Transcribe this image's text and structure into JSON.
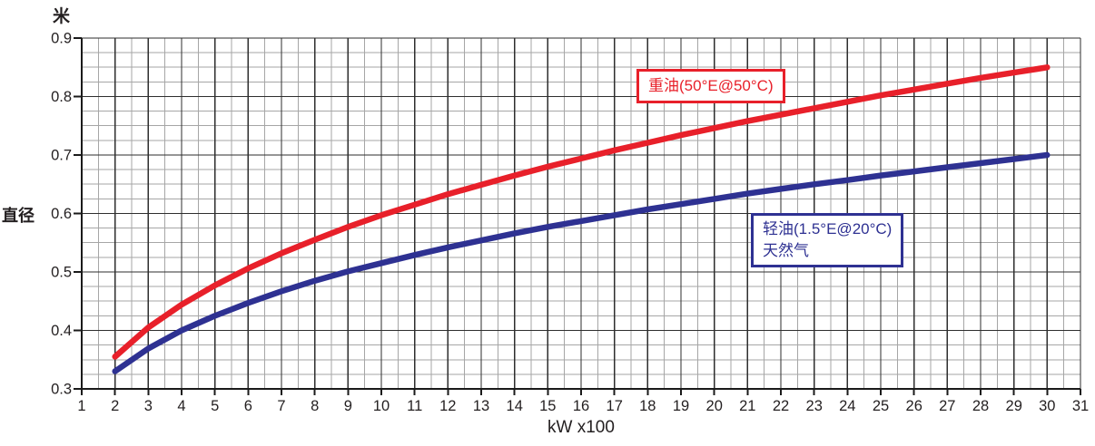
{
  "axis_labels": {
    "unit_top": "米",
    "y_name": "直径",
    "x_name": "kW x100"
  },
  "annotations": {
    "heavy_oil": {
      "text": "重油(50°E@50°C)",
      "color": "#e8202a"
    },
    "light_oil": {
      "line1": "轻油(1.5°E@20°C)",
      "line2": "天然气",
      "color": "#2e3192"
    }
  },
  "colors": {
    "grid_major": "#2e2e2e",
    "grid_minor": "#a6a6a6",
    "axis": "#1a1a1a",
    "tick_text": "#231f20",
    "background": "#ffffff",
    "heavy_oil_curve": "#e8202a",
    "light_oil_curve": "#2e3192"
  },
  "chart_data": {
    "type": "line",
    "title": "",
    "xlabel": "kW x100",
    "ylabel": "直径 (米)",
    "xlim": [
      1,
      31
    ],
    "ylim": [
      0.3,
      0.9
    ],
    "x_major_step": 1,
    "x_minor_step": 0.5,
    "y_major_step": 0.1,
    "y_minor_step": 0.025,
    "grid": "major+minor",
    "legend_position": "inline-annotation-boxes",
    "x_tick_labels": [
      1,
      2,
      3,
      4,
      5,
      6,
      7,
      8,
      9,
      10,
      11,
      12,
      13,
      14,
      15,
      16,
      17,
      18,
      19,
      20,
      21,
      22,
      23,
      24,
      25,
      26,
      27,
      28,
      29,
      30,
      31
    ],
    "y_tick_labels": [
      "0.3",
      "0.4",
      "0.5",
      "0.6",
      "0.7",
      "0.8",
      "0.9"
    ],
    "series": [
      {
        "name": "重油(50°E@50°C)",
        "color": "#e8202a",
        "x": [
          2,
          3,
          4,
          5,
          6,
          7,
          8,
          9,
          10,
          11,
          12,
          13,
          14,
          15,
          16,
          17,
          18,
          19,
          20,
          21,
          22,
          23,
          24,
          25,
          26,
          27,
          28,
          29,
          30
        ],
        "values": [
          0.355,
          0.405,
          0.444,
          0.477,
          0.506,
          0.532,
          0.555,
          0.577,
          0.597,
          0.615,
          0.633,
          0.649,
          0.665,
          0.68,
          0.694,
          0.708,
          0.721,
          0.734,
          0.746,
          0.758,
          0.769,
          0.78,
          0.791,
          0.802,
          0.812,
          0.822,
          0.832,
          0.841,
          0.85
        ]
      },
      {
        "name": "轻油(1.5°E@20°C) / 天然气",
        "color": "#2e3192",
        "x": [
          2,
          3,
          4,
          5,
          6,
          7,
          8,
          9,
          10,
          11,
          12,
          13,
          14,
          15,
          16,
          17,
          18,
          19,
          20,
          21,
          22,
          23,
          24,
          25,
          26,
          27,
          28,
          29,
          30
        ],
        "values": [
          0.33,
          0.369,
          0.4,
          0.425,
          0.447,
          0.467,
          0.485,
          0.501,
          0.515,
          0.529,
          0.542,
          0.554,
          0.566,
          0.577,
          0.587,
          0.597,
          0.607,
          0.616,
          0.625,
          0.634,
          0.642,
          0.65,
          0.657,
          0.665,
          0.672,
          0.679,
          0.686,
          0.693,
          0.7
        ]
      }
    ]
  }
}
